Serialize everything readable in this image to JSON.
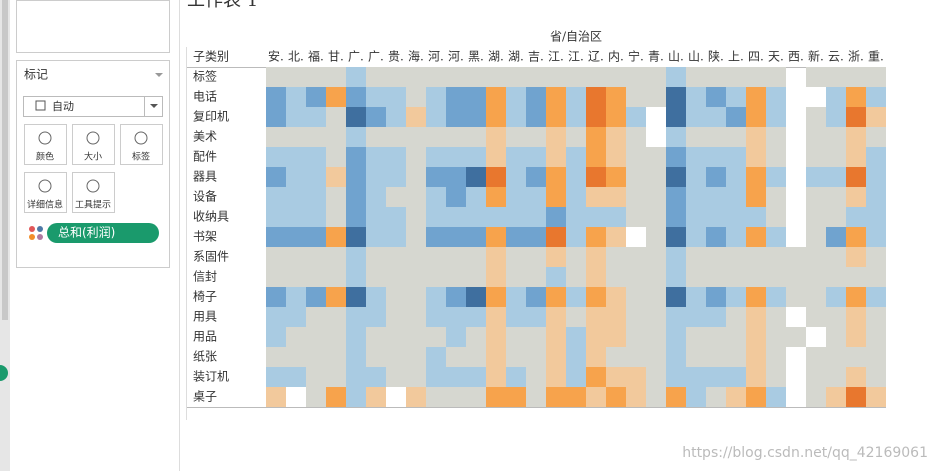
{
  "sidebar": {
    "marks_title": "标记",
    "mark_type": "自动",
    "buttons": [
      "颜色",
      "大小",
      "标签",
      "详细信息",
      "工具提示"
    ],
    "pill": "总和(利润)"
  },
  "chart_data": {
    "type": "heatmap",
    "title": "工作表 1",
    "x_label": "省/自治区",
    "y_label": "子类别",
    "x": [
      "安.",
      "北.",
      "福.",
      "甘.",
      "广.",
      "广.",
      "贵.",
      "海.",
      "河.",
      "河.",
      "黑.",
      "湖.",
      "湖.",
      "吉.",
      "江.",
      "江.",
      "辽.",
      "内.",
      "宁.",
      "青.",
      "山.",
      "山.",
      "陕.",
      "上.",
      "四.",
      "天.",
      "西.",
      "新.",
      "云.",
      "浙.",
      "重."
    ],
    "y": [
      "标签",
      "电话",
      "复印机",
      "美术",
      "配件",
      "器具",
      "设备",
      "收纳具",
      "书架",
      "系固件",
      "信封",
      "椅子",
      "用具",
      "用品",
      "纸张",
      "装订机",
      "桌子"
    ],
    "color_levels": [
      -3,
      -2,
      -1,
      0,
      1,
      2,
      3
    ],
    "colors": [
      "#e8772e",
      "#f7a34c",
      "#f2c99c",
      "#d6d7d0",
      "#a9cbe2",
      "#70a3cf",
      "#3f6f9f"
    ],
    "values": [
      [
        0,
        0,
        0,
        0,
        1,
        0,
        0,
        0,
        0,
        0,
        0,
        0,
        0,
        0,
        0,
        0,
        0,
        0,
        0,
        0,
        1,
        0,
        0,
        0,
        0,
        0,
        null,
        0,
        0,
        0,
        0
      ],
      [
        2,
        1,
        2,
        -2,
        2,
        1,
        1,
        0,
        1,
        2,
        2,
        -2,
        1,
        2,
        -2,
        1,
        -3,
        -2,
        0,
        0,
        3,
        1,
        2,
        1,
        -2,
        1,
        null,
        null,
        1,
        -2,
        1
      ],
      [
        2,
        1,
        1,
        0,
        3,
        2,
        1,
        -1,
        1,
        2,
        2,
        -2,
        1,
        2,
        -2,
        1,
        -3,
        -2,
        1,
        null,
        3,
        1,
        1,
        2,
        -2,
        1,
        null,
        0,
        1,
        -3,
        -1
      ],
      [
        0,
        0,
        0,
        0,
        1,
        0,
        0,
        0,
        0,
        0,
        0,
        -1,
        0,
        0,
        -1,
        0,
        -2,
        -1,
        0,
        null,
        1,
        0,
        0,
        0,
        -1,
        0,
        null,
        0,
        0,
        -1,
        0
      ],
      [
        1,
        1,
        1,
        0,
        2,
        1,
        1,
        0,
        1,
        1,
        1,
        -1,
        1,
        1,
        -1,
        1,
        -2,
        -1,
        0,
        0,
        2,
        1,
        1,
        1,
        -1,
        0,
        null,
        0,
        0,
        -1,
        1
      ],
      [
        2,
        1,
        1,
        -1,
        2,
        1,
        1,
        0,
        2,
        2,
        3,
        -3,
        1,
        2,
        -2,
        1,
        -3,
        -2,
        0,
        0,
        3,
        1,
        2,
        1,
        -2,
        1,
        null,
        1,
        1,
        -3,
        1
      ],
      [
        1,
        1,
        1,
        0,
        2,
        1,
        0,
        0,
        1,
        2,
        1,
        -2,
        1,
        1,
        -2,
        1,
        -1,
        -1,
        0,
        0,
        2,
        1,
        1,
        1,
        -2,
        0,
        null,
        0,
        0,
        -1,
        1
      ],
      [
        1,
        1,
        1,
        0,
        2,
        1,
        1,
        0,
        1,
        1,
        1,
        1,
        1,
        1,
        2,
        1,
        1,
        1,
        0,
        0,
        2,
        1,
        1,
        1,
        1,
        0,
        null,
        0,
        0,
        1,
        1
      ],
      [
        2,
        2,
        2,
        -2,
        3,
        1,
        1,
        0,
        2,
        2,
        2,
        -2,
        2,
        2,
        -3,
        1,
        -2,
        -1,
        null,
        0,
        3,
        1,
        2,
        1,
        -2,
        1,
        null,
        0,
        2,
        -2,
        1
      ],
      [
        0,
        0,
        0,
        0,
        1,
        0,
        0,
        0,
        0,
        0,
        0,
        -1,
        0,
        0,
        -1,
        0,
        -1,
        0,
        0,
        0,
        1,
        0,
        0,
        0,
        0,
        0,
        0,
        0,
        0,
        -1,
        0
      ],
      [
        0,
        0,
        0,
        0,
        1,
        0,
        0,
        0,
        0,
        0,
        0,
        -1,
        0,
        0,
        1,
        0,
        -1,
        0,
        0,
        0,
        1,
        0,
        0,
        0,
        0,
        0,
        0,
        0,
        0,
        0,
        0
      ],
      [
        2,
        1,
        2,
        -2,
        3,
        1,
        0,
        0,
        1,
        2,
        3,
        -2,
        1,
        2,
        -2,
        1,
        -2,
        -1,
        0,
        0,
        3,
        1,
        2,
        1,
        -2,
        1,
        0,
        0,
        1,
        -2,
        1
      ],
      [
        1,
        1,
        0,
        0,
        1,
        1,
        0,
        0,
        1,
        1,
        1,
        -1,
        1,
        1,
        -1,
        0,
        -1,
        -1,
        0,
        0,
        1,
        1,
        1,
        0,
        -1,
        0,
        null,
        0,
        0,
        -1,
        0
      ],
      [
        1,
        0,
        0,
        0,
        1,
        0,
        0,
        0,
        0,
        1,
        0,
        -1,
        0,
        0,
        -1,
        1,
        -1,
        -1,
        0,
        0,
        1,
        0,
        0,
        0,
        -1,
        0,
        0,
        null,
        0,
        -1,
        0
      ],
      [
        0,
        0,
        0,
        0,
        1,
        0,
        0,
        0,
        1,
        0,
        0,
        -1,
        0,
        0,
        -1,
        1,
        -1,
        0,
        0,
        0,
        1,
        0,
        0,
        0,
        -1,
        0,
        null,
        0,
        0,
        0,
        0
      ],
      [
        1,
        1,
        0,
        0,
        1,
        1,
        0,
        0,
        1,
        1,
        1,
        -1,
        1,
        0,
        -1,
        1,
        -2,
        -1,
        -1,
        0,
        1,
        1,
        1,
        1,
        -1,
        0,
        null,
        0,
        0,
        -1,
        0
      ],
      [
        -1,
        null,
        0,
        -2,
        1,
        -1,
        null,
        -1,
        0,
        0,
        0,
        -2,
        -2,
        0,
        -2,
        -2,
        -1,
        -2,
        -1,
        0,
        -2,
        1,
        0,
        -1,
        -2,
        1,
        null,
        0,
        -1,
        -3,
        -1
      ]
    ]
  },
  "watermark": "https://blog.csdn.net/qq_42169061"
}
